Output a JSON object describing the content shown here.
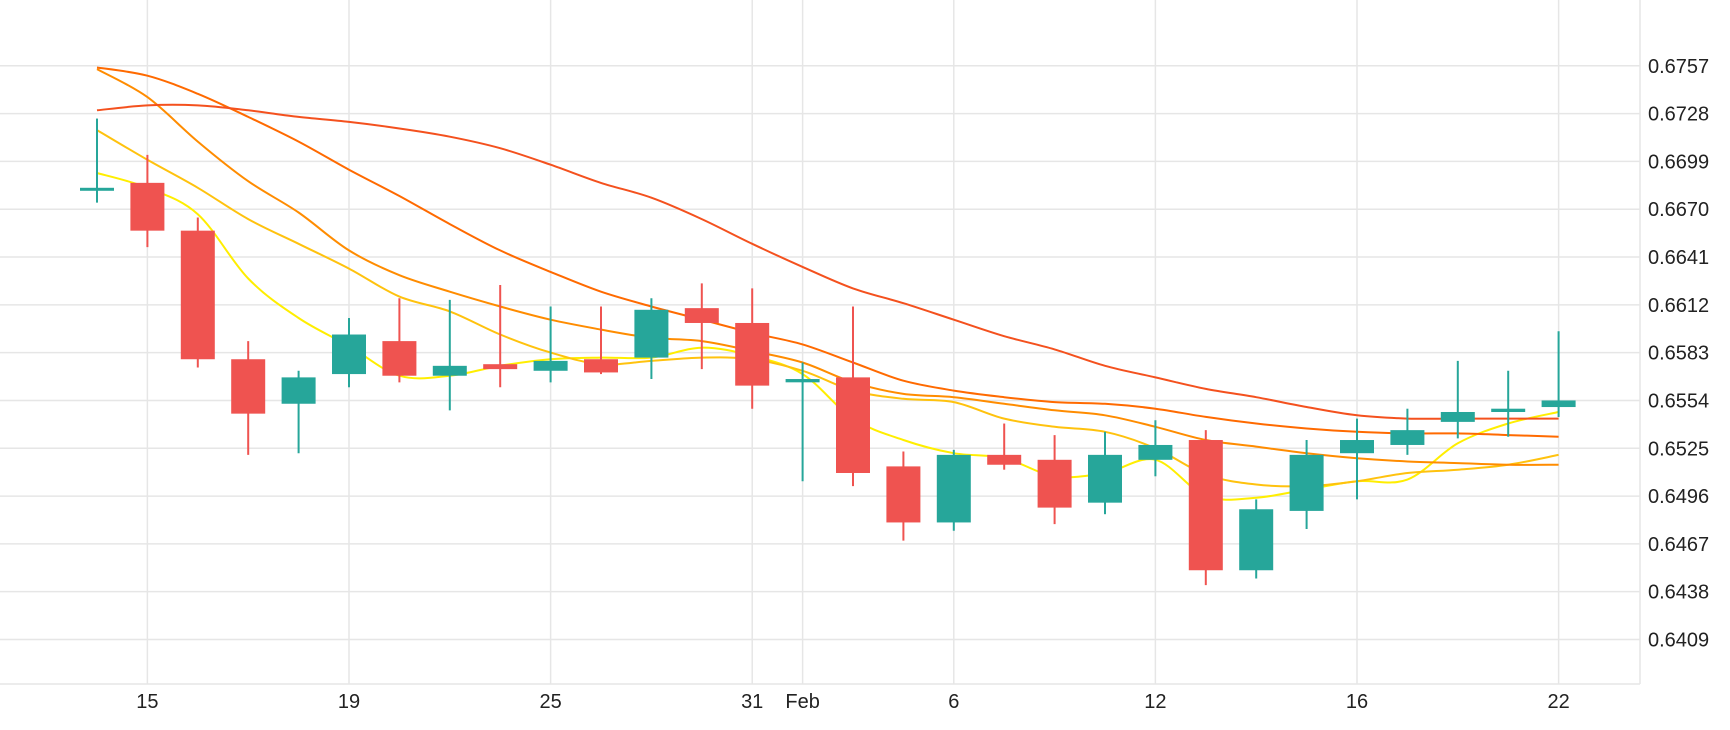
{
  "chart_data": {
    "type": "candlestick",
    "title": "",
    "xlabel": "",
    "ylabel": "",
    "ylim": [
      0.6382,
      0.6786
    ],
    "grid": true,
    "y_ticks": [
      "0.6757",
      "0.6728",
      "0.6699",
      "0.6670",
      "0.6641",
      "0.6612",
      "0.6583",
      "0.6554",
      "0.6525",
      "0.6496",
      "0.6467",
      "0.6438",
      "0.6409"
    ],
    "x_ticks": [
      {
        "label": "15",
        "i": 1
      },
      {
        "label": "19",
        "i": 5
      },
      {
        "label": "25",
        "i": 9
      },
      {
        "label": "31",
        "i": 13
      },
      {
        "label": "Feb",
        "i": 14
      },
      {
        "label": "6",
        "i": 17
      },
      {
        "label": "12",
        "i": 21
      },
      {
        "label": "16",
        "i": 25
      },
      {
        "label": "22",
        "i": 29
      }
    ],
    "candles": [
      {
        "o": 0.6683,
        "h": 0.6725,
        "l": 0.6674,
        "c": 0.6683
      },
      {
        "o": 0.6686,
        "h": 0.6703,
        "l": 0.6647,
        "c": 0.6657
      },
      {
        "o": 0.6657,
        "h": 0.6665,
        "l": 0.6574,
        "c": 0.6579
      },
      {
        "o": 0.6579,
        "h": 0.659,
        "l": 0.6521,
        "c": 0.6546
      },
      {
        "o": 0.6552,
        "h": 0.6572,
        "l": 0.6522,
        "c": 0.6568
      },
      {
        "o": 0.657,
        "h": 0.6604,
        "l": 0.6562,
        "c": 0.6594
      },
      {
        "o": 0.659,
        "h": 0.6616,
        "l": 0.6565,
        "c": 0.6569
      },
      {
        "o": 0.6569,
        "h": 0.6615,
        "l": 0.6548,
        "c": 0.6575
      },
      {
        "o": 0.6576,
        "h": 0.6624,
        "l": 0.6562,
        "c": 0.6573
      },
      {
        "o": 0.6572,
        "h": 0.6611,
        "l": 0.6565,
        "c": 0.6578
      },
      {
        "o": 0.6579,
        "h": 0.6611,
        "l": 0.657,
        "c": 0.6571
      },
      {
        "o": 0.658,
        "h": 0.6616,
        "l": 0.6567,
        "c": 0.6609
      },
      {
        "o": 0.661,
        "h": 0.6625,
        "l": 0.6573,
        "c": 0.6601
      },
      {
        "o": 0.6601,
        "h": 0.6622,
        "l": 0.6549,
        "c": 0.6563
      },
      {
        "o": 0.6565,
        "h": 0.6577,
        "l": 0.6505,
        "c": 0.6567
      },
      {
        "o": 0.6568,
        "h": 0.6611,
        "l": 0.6502,
        "c": 0.651
      },
      {
        "o": 0.6514,
        "h": 0.6523,
        "l": 0.6469,
        "c": 0.648
      },
      {
        "o": 0.648,
        "h": 0.6524,
        "l": 0.6475,
        "c": 0.6521
      },
      {
        "o": 0.6521,
        "h": 0.654,
        "l": 0.6512,
        "c": 0.6515
      },
      {
        "o": 0.6518,
        "h": 0.6533,
        "l": 0.6479,
        "c": 0.6489
      },
      {
        "o": 0.6492,
        "h": 0.6535,
        "l": 0.6485,
        "c": 0.6521
      },
      {
        "o": 0.6518,
        "h": 0.6542,
        "l": 0.6508,
        "c": 0.6527
      },
      {
        "o": 0.653,
        "h": 0.6536,
        "l": 0.6442,
        "c": 0.6451
      },
      {
        "o": 0.6451,
        "h": 0.6494,
        "l": 0.6446,
        "c": 0.6488
      },
      {
        "o": 0.6487,
        "h": 0.653,
        "l": 0.6476,
        "c": 0.6521
      },
      {
        "o": 0.6522,
        "h": 0.6543,
        "l": 0.6494,
        "c": 0.653
      },
      {
        "o": 0.6527,
        "h": 0.6549,
        "l": 0.6521,
        "c": 0.6536
      },
      {
        "o": 0.6541,
        "h": 0.6578,
        "l": 0.6531,
        "c": 0.6547
      },
      {
        "o": 0.6547,
        "h": 0.6572,
        "l": 0.6532,
        "c": 0.6549
      },
      {
        "o": 0.655,
        "h": 0.6596,
        "l": 0.6544,
        "c": 0.6554
      }
    ],
    "series": [
      {
        "color": "#ffee00",
        "x": [
          0,
          1,
          2,
          3,
          4,
          5,
          6,
          7,
          8,
          9,
          10,
          11,
          12,
          13,
          14,
          15,
          16,
          17,
          18,
          19,
          20,
          21,
          22,
          23,
          24,
          25,
          26,
          27,
          28,
          29
        ],
        "values": [
          0.6692,
          0.6683,
          0.6667,
          0.6628,
          0.6604,
          0.6587,
          0.6569,
          0.6569,
          0.6575,
          0.6579,
          0.658,
          0.658,
          0.6586,
          0.6581,
          0.657,
          0.6543,
          0.653,
          0.6522,
          0.6519,
          0.6508,
          0.651,
          0.6518,
          0.6496,
          0.6495,
          0.65,
          0.6505,
          0.6506,
          0.6528,
          0.654,
          0.6547
        ]
      },
      {
        "color": "#ffc20e",
        "x": [
          0,
          1,
          2,
          3,
          4,
          5,
          6,
          7,
          8,
          9,
          10,
          11,
          12,
          13,
          14,
          15,
          16,
          17,
          18,
          19,
          20,
          21,
          22,
          23,
          24,
          25,
          26,
          27,
          28,
          29
        ],
        "values": [
          0.6718,
          0.67,
          0.6683,
          0.6664,
          0.6649,
          0.6634,
          0.6617,
          0.6608,
          0.6594,
          0.6583,
          0.6576,
          0.6578,
          0.658,
          0.6579,
          0.6572,
          0.656,
          0.6555,
          0.6553,
          0.6543,
          0.6538,
          0.6535,
          0.6525,
          0.6509,
          0.6503,
          0.6502,
          0.6505,
          0.651,
          0.6512,
          0.6515,
          0.6521
        ]
      },
      {
        "color": "#ff8c00",
        "x": [
          0,
          1,
          2,
          3,
          4,
          5,
          6,
          7,
          8,
          9,
          10,
          11,
          12,
          13,
          14,
          15,
          16,
          17,
          18,
          19,
          20,
          21,
          22,
          23,
          24,
          25,
          26,
          27,
          28,
          29
        ],
        "values": [
          0.6755,
          0.6738,
          0.6711,
          0.6687,
          0.6668,
          0.6645,
          0.663,
          0.662,
          0.6611,
          0.6603,
          0.6597,
          0.6592,
          0.659,
          0.6584,
          0.6577,
          0.6565,
          0.6558,
          0.6556,
          0.6552,
          0.6548,
          0.6545,
          0.6538,
          0.653,
          0.6526,
          0.6522,
          0.6519,
          0.6517,
          0.6516,
          0.6515,
          0.6515
        ]
      },
      {
        "color": "#ff6a00",
        "x": [
          0,
          1,
          2,
          3,
          4,
          5,
          6,
          7,
          8,
          9,
          10,
          11,
          12,
          13,
          14,
          15,
          16,
          17,
          18,
          19,
          20,
          21,
          22,
          23,
          24,
          25,
          26,
          27,
          28,
          29
        ],
        "values": [
          0.6756,
          0.6751,
          0.674,
          0.6726,
          0.6711,
          0.6694,
          0.6678,
          0.6661,
          0.6645,
          0.6632,
          0.662,
          0.6611,
          0.6603,
          0.6595,
          0.6588,
          0.6577,
          0.6566,
          0.656,
          0.6556,
          0.6553,
          0.6552,
          0.6549,
          0.6544,
          0.654,
          0.6537,
          0.6535,
          0.6534,
          0.6534,
          0.6533,
          0.6532
        ]
      },
      {
        "color": "#f4511e",
        "x": [
          0,
          1,
          2,
          3,
          4,
          5,
          6,
          7,
          8,
          9,
          10,
          11,
          12,
          13,
          14,
          15,
          16,
          17,
          18,
          19,
          20,
          21,
          22,
          23,
          24,
          25,
          26,
          27,
          28,
          29
        ],
        "values": [
          0.673,
          0.6733,
          0.6733,
          0.673,
          0.6726,
          0.6723,
          0.6719,
          0.6714,
          0.6707,
          0.6697,
          0.6686,
          0.6677,
          0.6664,
          0.6649,
          0.6635,
          0.6622,
          0.6613,
          0.6603,
          0.6593,
          0.6585,
          0.6575,
          0.6568,
          0.6561,
          0.6556,
          0.655,
          0.6545,
          0.6543,
          0.6543,
          0.6543,
          0.6543
        ]
      }
    ],
    "up_color": "#26a69a",
    "down_color": "#ef5350",
    "grid_color": "#e6e6e6",
    "axis_text_color": "#222222"
  }
}
